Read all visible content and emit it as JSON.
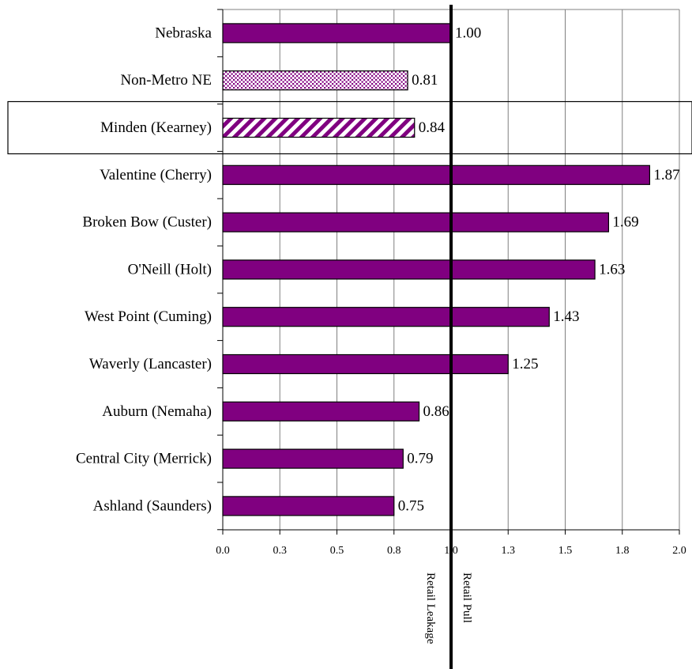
{
  "chart_data": {
    "type": "bar",
    "orientation": "horizontal",
    "categories": [
      "Nebraska",
      "Non-Metro NE",
      "Minden (Kearney)",
      "Valentine (Cherry)",
      "Broken Bow (Custer)",
      "O'Neill (Holt)",
      "West Point (Cuming)",
      "Waverly (Lancaster)",
      "Auburn (Nemaha)",
      "Central City (Merrick)",
      "Ashland (Saunders)"
    ],
    "values": [
      1.0,
      0.81,
      0.84,
      1.87,
      1.69,
      1.63,
      1.43,
      1.25,
      0.86,
      0.79,
      0.75
    ],
    "value_labels": [
      "1.00",
      "0.81",
      "0.84",
      "1.87",
      "1.69",
      "1.63",
      "1.43",
      "1.25",
      "0.86",
      "0.79",
      "0.75"
    ],
    "bar_styles": [
      "solid",
      "dotted",
      "hatched",
      "solid",
      "solid",
      "solid",
      "solid",
      "solid",
      "solid",
      "solid",
      "solid"
    ],
    "highlighted_category": "Minden (Kearney)",
    "xlim": [
      0,
      2.0
    ],
    "x_ticks": [
      0.0,
      0.25,
      0.5,
      0.75,
      1.0,
      1.25,
      1.5,
      1.75,
      2.0
    ],
    "x_tick_labels": [
      "0.0",
      "0.3",
      "0.5",
      "0.8",
      "1.0",
      "1.3",
      "1.5",
      "1.8",
      "2.0"
    ],
    "reference_line": 1.0,
    "reference_labels": {
      "left": "Retail Leakage",
      "right": "Retail Pull"
    },
    "grid": "vertical",
    "legend": "none",
    "colors": {
      "bar": "#800080",
      "bar_outline": "#000000",
      "grid": "#808080",
      "reference_line": "#000000"
    }
  }
}
